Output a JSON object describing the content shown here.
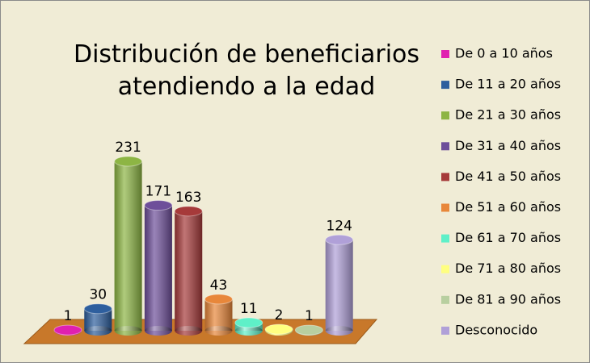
{
  "chart_data": {
    "type": "bar",
    "title": "Distribución de beneficiarios atendiendo a la edad",
    "categories": [
      "De 0 a 10 años",
      "De 11 a 20 años",
      "De 21 a 30 años",
      "De 31 a 40 años",
      "De 41 a 50 años",
      "De 51 a 60 años",
      "De 61 a 70 años",
      "De 71 a 80 años",
      "De 81 a 90 años",
      "Desconocido"
    ],
    "values": [
      1,
      30,
      231,
      171,
      163,
      43,
      11,
      2,
      1,
      124
    ],
    "colors": [
      "#e020b0",
      "#2e5f9e",
      "#8db544",
      "#6e4f9a",
      "#a63a3a",
      "#e8873a",
      "#5ff0c8",
      "#ffff80",
      "#b8cfa0",
      "#b0a0d8"
    ],
    "legend": "right"
  }
}
